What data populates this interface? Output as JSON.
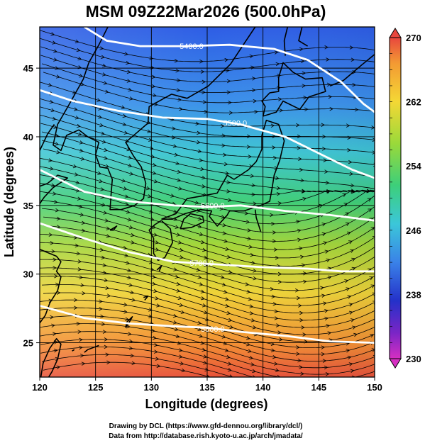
{
  "title": "MSM 09Z22Mar2026 (500.0hPa)",
  "x_axis": {
    "label": "Longitude (degrees)",
    "min": 120,
    "max": 150,
    "ticks": [
      "120",
      "125",
      "130",
      "135",
      "140",
      "145",
      "150"
    ],
    "tick_values": [
      120,
      125,
      130,
      135,
      140,
      145,
      150
    ]
  },
  "y_axis": {
    "label": "Latitude  (degrees)",
    "min": 22.5,
    "max": 48,
    "ticks": [
      "25",
      "30",
      "35",
      "40",
      "45"
    ],
    "tick_values": [
      25,
      30,
      35,
      40,
      45
    ]
  },
  "colorbar": {
    "min": 230,
    "max": 270,
    "labels": [
      "270",
      "262",
      "254",
      "246",
      "238",
      "230"
    ],
    "label_values": [
      270,
      262,
      254,
      246,
      238,
      230
    ]
  },
  "contours": [
    {
      "label": "5400.0",
      "points": [
        [
          124,
          48
        ],
        [
          126,
          47
        ],
        [
          129,
          46.6
        ],
        [
          133,
          46.6
        ],
        [
          137,
          46.7
        ],
        [
          141,
          46.4
        ],
        [
          144,
          45.6
        ],
        [
          147,
          44
        ],
        [
          149,
          42.4
        ],
        [
          150,
          41.8
        ]
      ],
      "label_at": [
        133.6,
        46.6
      ]
    },
    {
      "label": "5500.0",
      "points": [
        [
          120,
          43.4
        ],
        [
          123,
          42.6
        ],
        [
          127,
          41.9
        ],
        [
          131,
          41.4
        ],
        [
          135,
          41.3
        ],
        [
          138,
          40.9
        ],
        [
          142,
          40
        ],
        [
          145,
          38.8
        ],
        [
          148,
          37.6
        ],
        [
          150,
          37
        ]
      ],
      "label_at": [
        137.5,
        41
      ]
    },
    {
      "label": "5600.0",
      "points": [
        [
          120,
          37.6
        ],
        [
          124,
          36
        ],
        [
          128,
          35.3
        ],
        [
          132,
          35
        ],
        [
          135,
          34.9
        ],
        [
          138,
          35
        ],
        [
          142,
          34.6
        ],
        [
          146,
          34.3
        ],
        [
          150,
          33.9
        ]
      ],
      "label_at": [
        135.5,
        35
      ]
    },
    {
      "label": "5700.0",
      "points": [
        [
          120,
          33.7
        ],
        [
          124,
          32.6
        ],
        [
          128,
          31.6
        ],
        [
          132,
          30.9
        ],
        [
          136,
          30.7
        ],
        [
          140,
          30.5
        ],
        [
          144,
          30.4
        ],
        [
          147,
          30.2
        ],
        [
          150,
          30.2
        ]
      ],
      "label_at": [
        134.5,
        30.8
      ]
    },
    {
      "label": "5800.0",
      "points": [
        [
          120,
          27.7
        ],
        [
          124,
          26.8
        ],
        [
          128,
          26.4
        ],
        [
          132,
          26.2
        ],
        [
          135,
          26.1
        ],
        [
          138,
          25.8
        ],
        [
          142,
          25.5
        ],
        [
          146,
          25.1
        ],
        [
          150,
          25
        ]
      ],
      "label_at": [
        135.5,
        26
      ]
    }
  ],
  "credits": {
    "line1": "Drawing by DCL (https://www.gfd-dennou.org/library/dcl/)",
    "line2": "Data from http://database.rish.kyoto-u.ac.jp/arch/jmadata/"
  }
}
